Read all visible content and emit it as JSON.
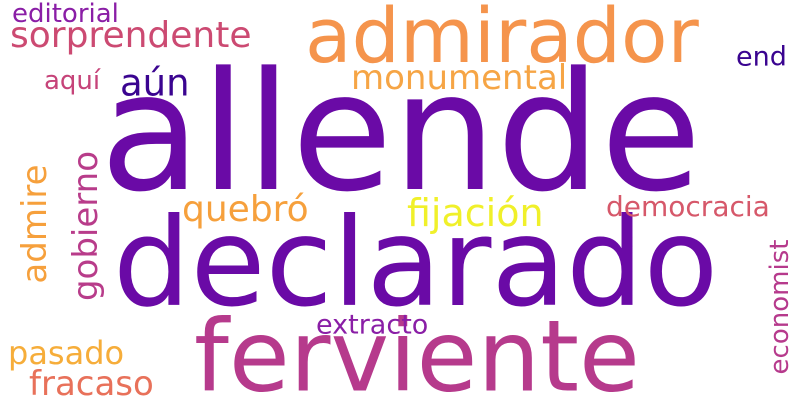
{
  "words": [
    {
      "id": "allende",
      "text": "allende",
      "color": "#6a0aa6"
    },
    {
      "id": "declarado",
      "text": "declarado",
      "color": "#6a0aa6"
    },
    {
      "id": "ferviente",
      "text": "ferviente",
      "color": "#b63a8c"
    },
    {
      "id": "admirador",
      "text": "admirador",
      "color": "#f5944c"
    },
    {
      "id": "sorprendente",
      "text": "sorprendente",
      "color": "#cc4a72"
    },
    {
      "id": "editorial",
      "text": "editorial",
      "color": "#8a1ea6"
    },
    {
      "id": "aun",
      "text": "aún",
      "color": "#3a0490"
    },
    {
      "id": "aqui",
      "text": "aquí",
      "color": "#c64379"
    },
    {
      "id": "monumental",
      "text": "monumental",
      "color": "#f6a545"
    },
    {
      "id": "end",
      "text": "end",
      "color": "#3a0490"
    },
    {
      "id": "quebro",
      "text": "quebró",
      "color": "#f6a03c"
    },
    {
      "id": "fijacion",
      "text": "fijación",
      "color": "#f0f02a"
    },
    {
      "id": "democracia",
      "text": "democracia",
      "color": "#d6586a"
    },
    {
      "id": "extracto",
      "text": "extracto",
      "color": "#8a1ea6"
    },
    {
      "id": "pasado",
      "text": "pasado",
      "color": "#f6ad3a"
    },
    {
      "id": "fracaso",
      "text": "fracaso",
      "color": "#e8715a"
    },
    {
      "id": "gobierno",
      "text": "gobierno",
      "color": "#b83c8a"
    },
    {
      "id": "admire",
      "text": "admire",
      "color": "#f6a03c"
    },
    {
      "id": "economist",
      "text": "economist",
      "color": "#b63a8c"
    }
  ]
}
